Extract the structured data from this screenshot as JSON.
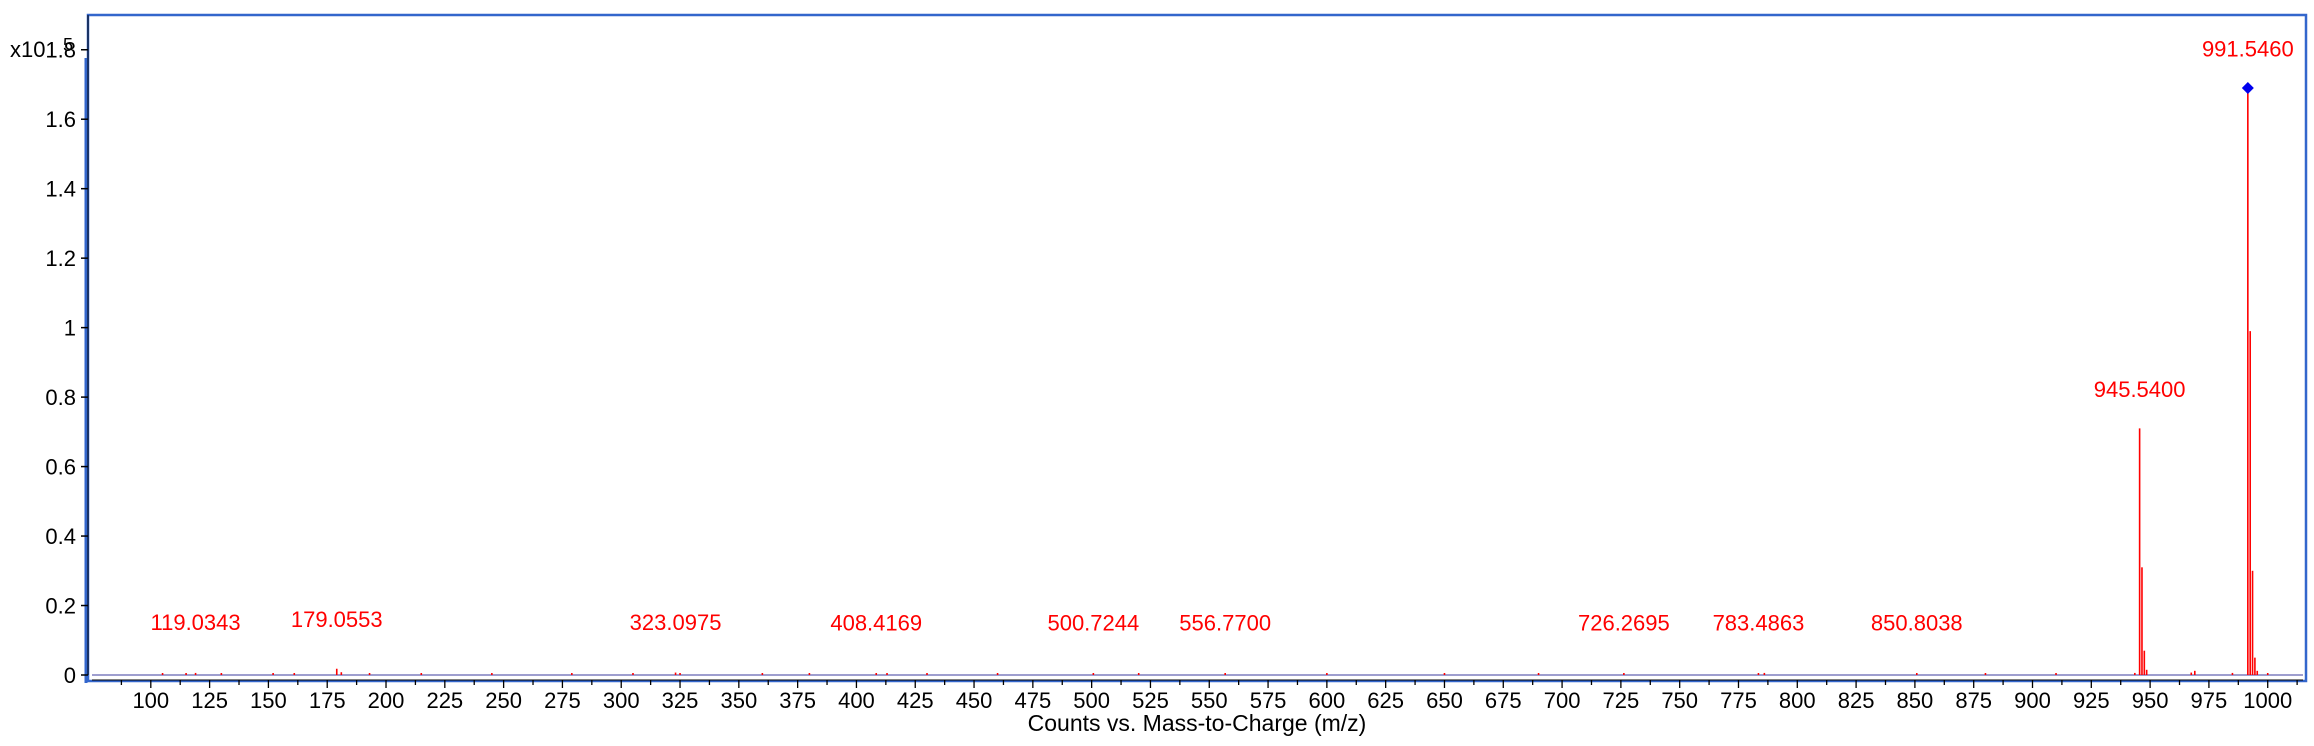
{
  "chart_data": {
    "type": "bar",
    "title": "",
    "xlabel": "Counts vs. Mass-to-Charge (m/z)",
    "ylabel": "",
    "y_multiplier_label": "x10",
    "y_multiplier_exponent": "5",
    "xlim": [
      75,
      1015
    ],
    "ylim": [
      0,
      1.9
    ],
    "x_ticks": [
      100,
      125,
      150,
      175,
      200,
      225,
      250,
      275,
      300,
      325,
      350,
      375,
      400,
      425,
      450,
      475,
      500,
      525,
      550,
      575,
      600,
      625,
      650,
      675,
      700,
      725,
      750,
      775,
      800,
      825,
      850,
      875,
      900,
      925,
      950,
      975,
      1000
    ],
    "y_ticks": [
      0,
      0.2,
      0.4,
      0.6,
      0.8,
      1,
      1.2,
      1.4,
      1.6,
      1.8
    ],
    "y_tick_labels": [
      "0",
      "0.2",
      "0.4",
      "0.6",
      "0.8",
      "1",
      "1.2",
      "1.4",
      "1.6",
      "1.8"
    ],
    "grid": false,
    "legend": "none",
    "colors": {
      "frame": "#3366cc",
      "peak": "#ff0000",
      "label": "#ff0000",
      "baseline": "#7f7fbf",
      "marker": "#0000ee",
      "axis_text": "#000000"
    },
    "peaks": [
      {
        "mz": 105.0,
        "y": 0.004
      },
      {
        "mz": 115.0,
        "y": 0.003
      },
      {
        "mz": 119.0343,
        "y": 0.006
      },
      {
        "mz": 130.0,
        "y": 0.003
      },
      {
        "mz": 152.0,
        "y": 0.003
      },
      {
        "mz": 161.0,
        "y": 0.004
      },
      {
        "mz": 179.0553,
        "y": 0.018
      },
      {
        "mz": 181.0,
        "y": 0.008
      },
      {
        "mz": 193.0,
        "y": 0.003
      },
      {
        "mz": 215.0,
        "y": 0.003
      },
      {
        "mz": 245.0,
        "y": 0.002
      },
      {
        "mz": 279.0,
        "y": 0.003
      },
      {
        "mz": 305.0,
        "y": 0.003
      },
      {
        "mz": 323.0975,
        "y": 0.007
      },
      {
        "mz": 325.0,
        "y": 0.004
      },
      {
        "mz": 360.0,
        "y": 0.003
      },
      {
        "mz": 380.0,
        "y": 0.002
      },
      {
        "mz": 408.4169,
        "y": 0.004
      },
      {
        "mz": 413.0,
        "y": 0.002
      },
      {
        "mz": 430.0,
        "y": 0.002
      },
      {
        "mz": 460.0,
        "y": 0.002
      },
      {
        "mz": 500.7244,
        "y": 0.003
      },
      {
        "mz": 520.0,
        "y": 0.002
      },
      {
        "mz": 556.77,
        "y": 0.003
      },
      {
        "mz": 600.0,
        "y": 0.002
      },
      {
        "mz": 650.0,
        "y": 0.002
      },
      {
        "mz": 690.0,
        "y": 0.002
      },
      {
        "mz": 726.2695,
        "y": 0.003
      },
      {
        "mz": 783.4863,
        "y": 0.004
      },
      {
        "mz": 786.0,
        "y": 0.006
      },
      {
        "mz": 850.8038,
        "y": 0.003
      },
      {
        "mz": 880.0,
        "y": 0.002
      },
      {
        "mz": 910.0,
        "y": 0.002
      },
      {
        "mz": 943.5,
        "y": 0.006
      },
      {
        "mz": 945.54,
        "y": 0.71
      },
      {
        "mz": 946.54,
        "y": 0.31
      },
      {
        "mz": 947.54,
        "y": 0.07
      },
      {
        "mz": 948.54,
        "y": 0.015
      },
      {
        "mz": 967.5,
        "y": 0.007
      },
      {
        "mz": 969.0,
        "y": 0.012
      },
      {
        "mz": 985.0,
        "y": 0.006
      },
      {
        "mz": 991.546,
        "y": 1.69
      },
      {
        "mz": 992.55,
        "y": 0.99
      },
      {
        "mz": 993.55,
        "y": 0.3
      },
      {
        "mz": 994.55,
        "y": 0.05
      },
      {
        "mz": 995.55,
        "y": 0.012
      },
      {
        "mz": 1000.0,
        "y": 0.004
      }
    ],
    "annotations": [
      {
        "text": "119.0343",
        "mz": 119.0343,
        "y": 0.13
      },
      {
        "text": "179.0553",
        "mz": 179.0553,
        "y": 0.138
      },
      {
        "text": "323.0975",
        "mz": 323.0975,
        "y": 0.13
      },
      {
        "text": "408.4169",
        "mz": 408.4169,
        "y": 0.128
      },
      {
        "text": "500.7244",
        "mz": 500.7244,
        "y": 0.128
      },
      {
        "text": "556.7700",
        "mz": 556.77,
        "y": 0.128
      },
      {
        "text": "726.2695",
        "mz": 726.2695,
        "y": 0.128
      },
      {
        "text": "783.4863",
        "mz": 783.4863,
        "y": 0.128
      },
      {
        "text": "850.8038",
        "mz": 850.8038,
        "y": 0.128
      },
      {
        "text": "945.5400",
        "mz": 945.54,
        "y": 0.8
      },
      {
        "text": "991.5460",
        "mz": 991.546,
        "y": 1.78
      }
    ],
    "marker": {
      "mz": 991.546,
      "y": 1.69,
      "shape": "diamond"
    }
  }
}
